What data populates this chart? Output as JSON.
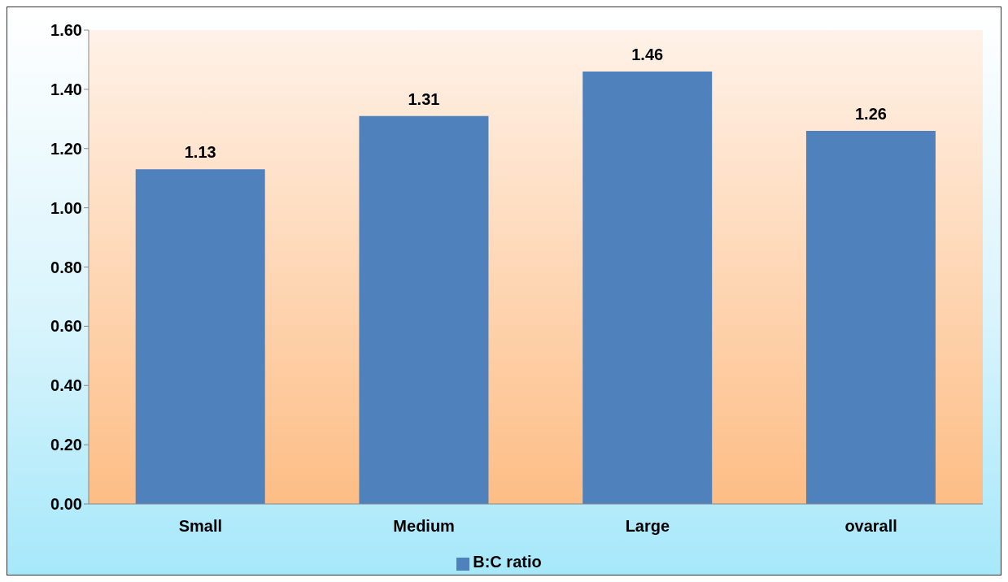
{
  "chart_data": {
    "type": "bar",
    "categories": [
      "Small",
      "Medium",
      "Large",
      "ovarall"
    ],
    "series": [
      {
        "name": "B:C ratio",
        "color": "#4f81bd",
        "values": [
          1.13,
          1.31,
          1.46,
          1.26
        ]
      }
    ],
    "ylim": [
      0,
      1.6
    ],
    "yticks": [
      {
        "value": 0,
        "label": "0.00"
      },
      {
        "value": 0.2,
        "label": "0.20"
      },
      {
        "value": 0.4,
        "label": "0.40"
      },
      {
        "value": 0.6,
        "label": "0.60"
      },
      {
        "value": 0.8,
        "label": "0.80"
      },
      {
        "value": 1.0,
        "label": "1.00"
      },
      {
        "value": 1.2,
        "label": "1.20"
      },
      {
        "value": 1.4,
        "label": "1.40"
      },
      {
        "value": 1.6,
        "label": "1.60"
      }
    ],
    "data_labels": true,
    "legend": "bottom"
  }
}
